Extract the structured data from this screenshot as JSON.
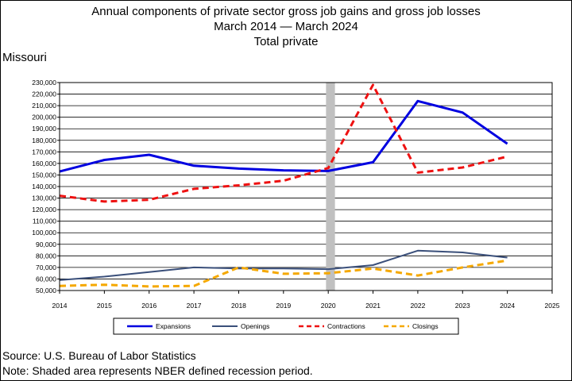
{
  "header": {
    "title_line1": "Annual components of private sector gross job gains and gross job losses",
    "title_line2": "March 2014 — March 2024",
    "title_line3": "Total private",
    "state": "Missouri"
  },
  "footer": {
    "source": "Source: U.S. Bureau of Labor Statistics",
    "note": "Note: Shaded area represents NBER defined recession period."
  },
  "chart_data": {
    "type": "line",
    "x_ticks": [
      2014,
      2015,
      2016,
      2017,
      2018,
      2019,
      2020,
      2021,
      2022,
      2023,
      2024,
      2025
    ],
    "x_tick_labels": [
      "2014",
      "2015",
      "2016",
      "2017",
      "2018",
      "2019",
      "2020",
      "2021",
      "2022",
      "2023",
      "2024",
      "2025"
    ],
    "xlim": [
      2014,
      2025
    ],
    "ylim": [
      50000,
      230000
    ],
    "y_ticks": [
      50000,
      60000,
      70000,
      80000,
      90000,
      100000,
      110000,
      120000,
      130000,
      140000,
      150000,
      160000,
      170000,
      180000,
      190000,
      200000,
      210000,
      220000,
      230000
    ],
    "y_tick_labels": [
      "50,000",
      "60,000",
      "70,000",
      "80,000",
      "90,000",
      "100,000",
      "110,000",
      "120,000",
      "130,000",
      "140,000",
      "150,000",
      "160,000",
      "170,000",
      "180,000",
      "190,000",
      "200,000",
      "210,000",
      "220,000",
      "230,000"
    ],
    "grid": true,
    "legend_position": "bottom",
    "recession": {
      "start": 2019.95,
      "end": 2020.15,
      "color": "#c0c0c0"
    },
    "series": [
      {
        "name": "Expansions",
        "color": "#0000e0",
        "dash": "solid",
        "width": 3,
        "x": [
          2014,
          2015,
          2016,
          2017,
          2018,
          2019,
          2020,
          2021,
          2022,
          2023,
          2024
        ],
        "y": [
          153000,
          163000,
          167500,
          158000,
          155500,
          154000,
          153500,
          161000,
          214000,
          204000,
          177000
        ]
      },
      {
        "name": "Openings",
        "color": "#3a4f7a",
        "dash": "solid",
        "width": 2,
        "x": [
          2014,
          2015,
          2016,
          2017,
          2018,
          2019,
          2020,
          2021,
          2022,
          2023,
          2024
        ],
        "y": [
          59000,
          62000,
          66000,
          70000,
          69000,
          69000,
          68500,
          72000,
          84500,
          83000,
          78500
        ]
      },
      {
        "name": "Contractions",
        "color": "#ee1111",
        "dash": "dashed",
        "width": 3,
        "x": [
          2014,
          2015,
          2016,
          2017,
          2018,
          2019,
          2020,
          2021,
          2022,
          2023,
          2024
        ],
        "y": [
          132000,
          127000,
          128500,
          138000,
          141000,
          145000,
          156000,
          228000,
          152000,
          156500,
          166000
        ]
      },
      {
        "name": "Closings",
        "color": "#f5a800",
        "dash": "dashed",
        "width": 3,
        "x": [
          2014,
          2015,
          2016,
          2017,
          2018,
          2019,
          2020,
          2021,
          2022,
          2023,
          2024
        ],
        "y": [
          54000,
          55000,
          53500,
          54000,
          70000,
          64500,
          65000,
          69000,
          63000,
          70000,
          76000
        ]
      }
    ]
  }
}
